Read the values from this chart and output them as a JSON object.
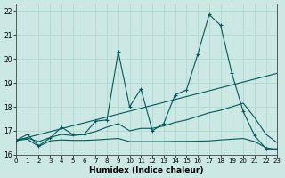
{
  "xlabel": "Humidex (Indice chaleur)",
  "background_color": "#cce8e4",
  "grid_color": "#b0d8d4",
  "line_color": "#005a5a",
  "xlim": [
    0,
    23
  ],
  "ylim": [
    16.0,
    22.3
  ],
  "yticks": [
    16,
    17,
    18,
    19,
    20,
    21,
    22
  ],
  "xticks": [
    0,
    1,
    2,
    3,
    4,
    5,
    6,
    7,
    8,
    9,
    10,
    11,
    12,
    13,
    14,
    15,
    16,
    17,
    18,
    19,
    20,
    21,
    22,
    23
  ],
  "line1_x": [
    0,
    1,
    2,
    3,
    4,
    5,
    6,
    7,
    8,
    9,
    10,
    11,
    12,
    13,
    14,
    15,
    16,
    17,
    18,
    19,
    20,
    21,
    22,
    23
  ],
  "line1_y": [
    16.6,
    16.85,
    16.38,
    16.7,
    17.15,
    16.85,
    16.85,
    17.4,
    17.45,
    20.3,
    18.0,
    18.75,
    17.0,
    17.3,
    18.5,
    18.7,
    20.2,
    21.85,
    21.4,
    19.4,
    17.8,
    16.8,
    16.25,
    16.25
  ],
  "line2_x": [
    0,
    1,
    2,
    3,
    4,
    5,
    6,
    7,
    8,
    9,
    10,
    11,
    12,
    13,
    14,
    15,
    16,
    17,
    18,
    19,
    20,
    21,
    22,
    23
  ],
  "line2_y": [
    16.6,
    16.65,
    16.35,
    16.58,
    16.62,
    16.6,
    16.6,
    16.62,
    16.65,
    16.68,
    16.55,
    16.55,
    16.55,
    16.55,
    16.56,
    16.56,
    16.57,
    16.58,
    16.62,
    16.65,
    16.68,
    16.55,
    16.3,
    16.2
  ],
  "line3_x": [
    0,
    1,
    2,
    3,
    4,
    5,
    6,
    7,
    8,
    9,
    10,
    11,
    12,
    13,
    14,
    15,
    16,
    17,
    18,
    19,
    20,
    21,
    22,
    23
  ],
  "line3_y": [
    16.6,
    16.7,
    16.55,
    16.72,
    16.85,
    16.8,
    16.85,
    16.97,
    17.15,
    17.3,
    17.0,
    17.1,
    17.1,
    17.2,
    17.35,
    17.45,
    17.6,
    17.75,
    17.85,
    18.0,
    18.15,
    17.55,
    16.85,
    16.5
  ],
  "line4_x": [
    0,
    23
  ],
  "line4_y": [
    16.6,
    19.4
  ]
}
